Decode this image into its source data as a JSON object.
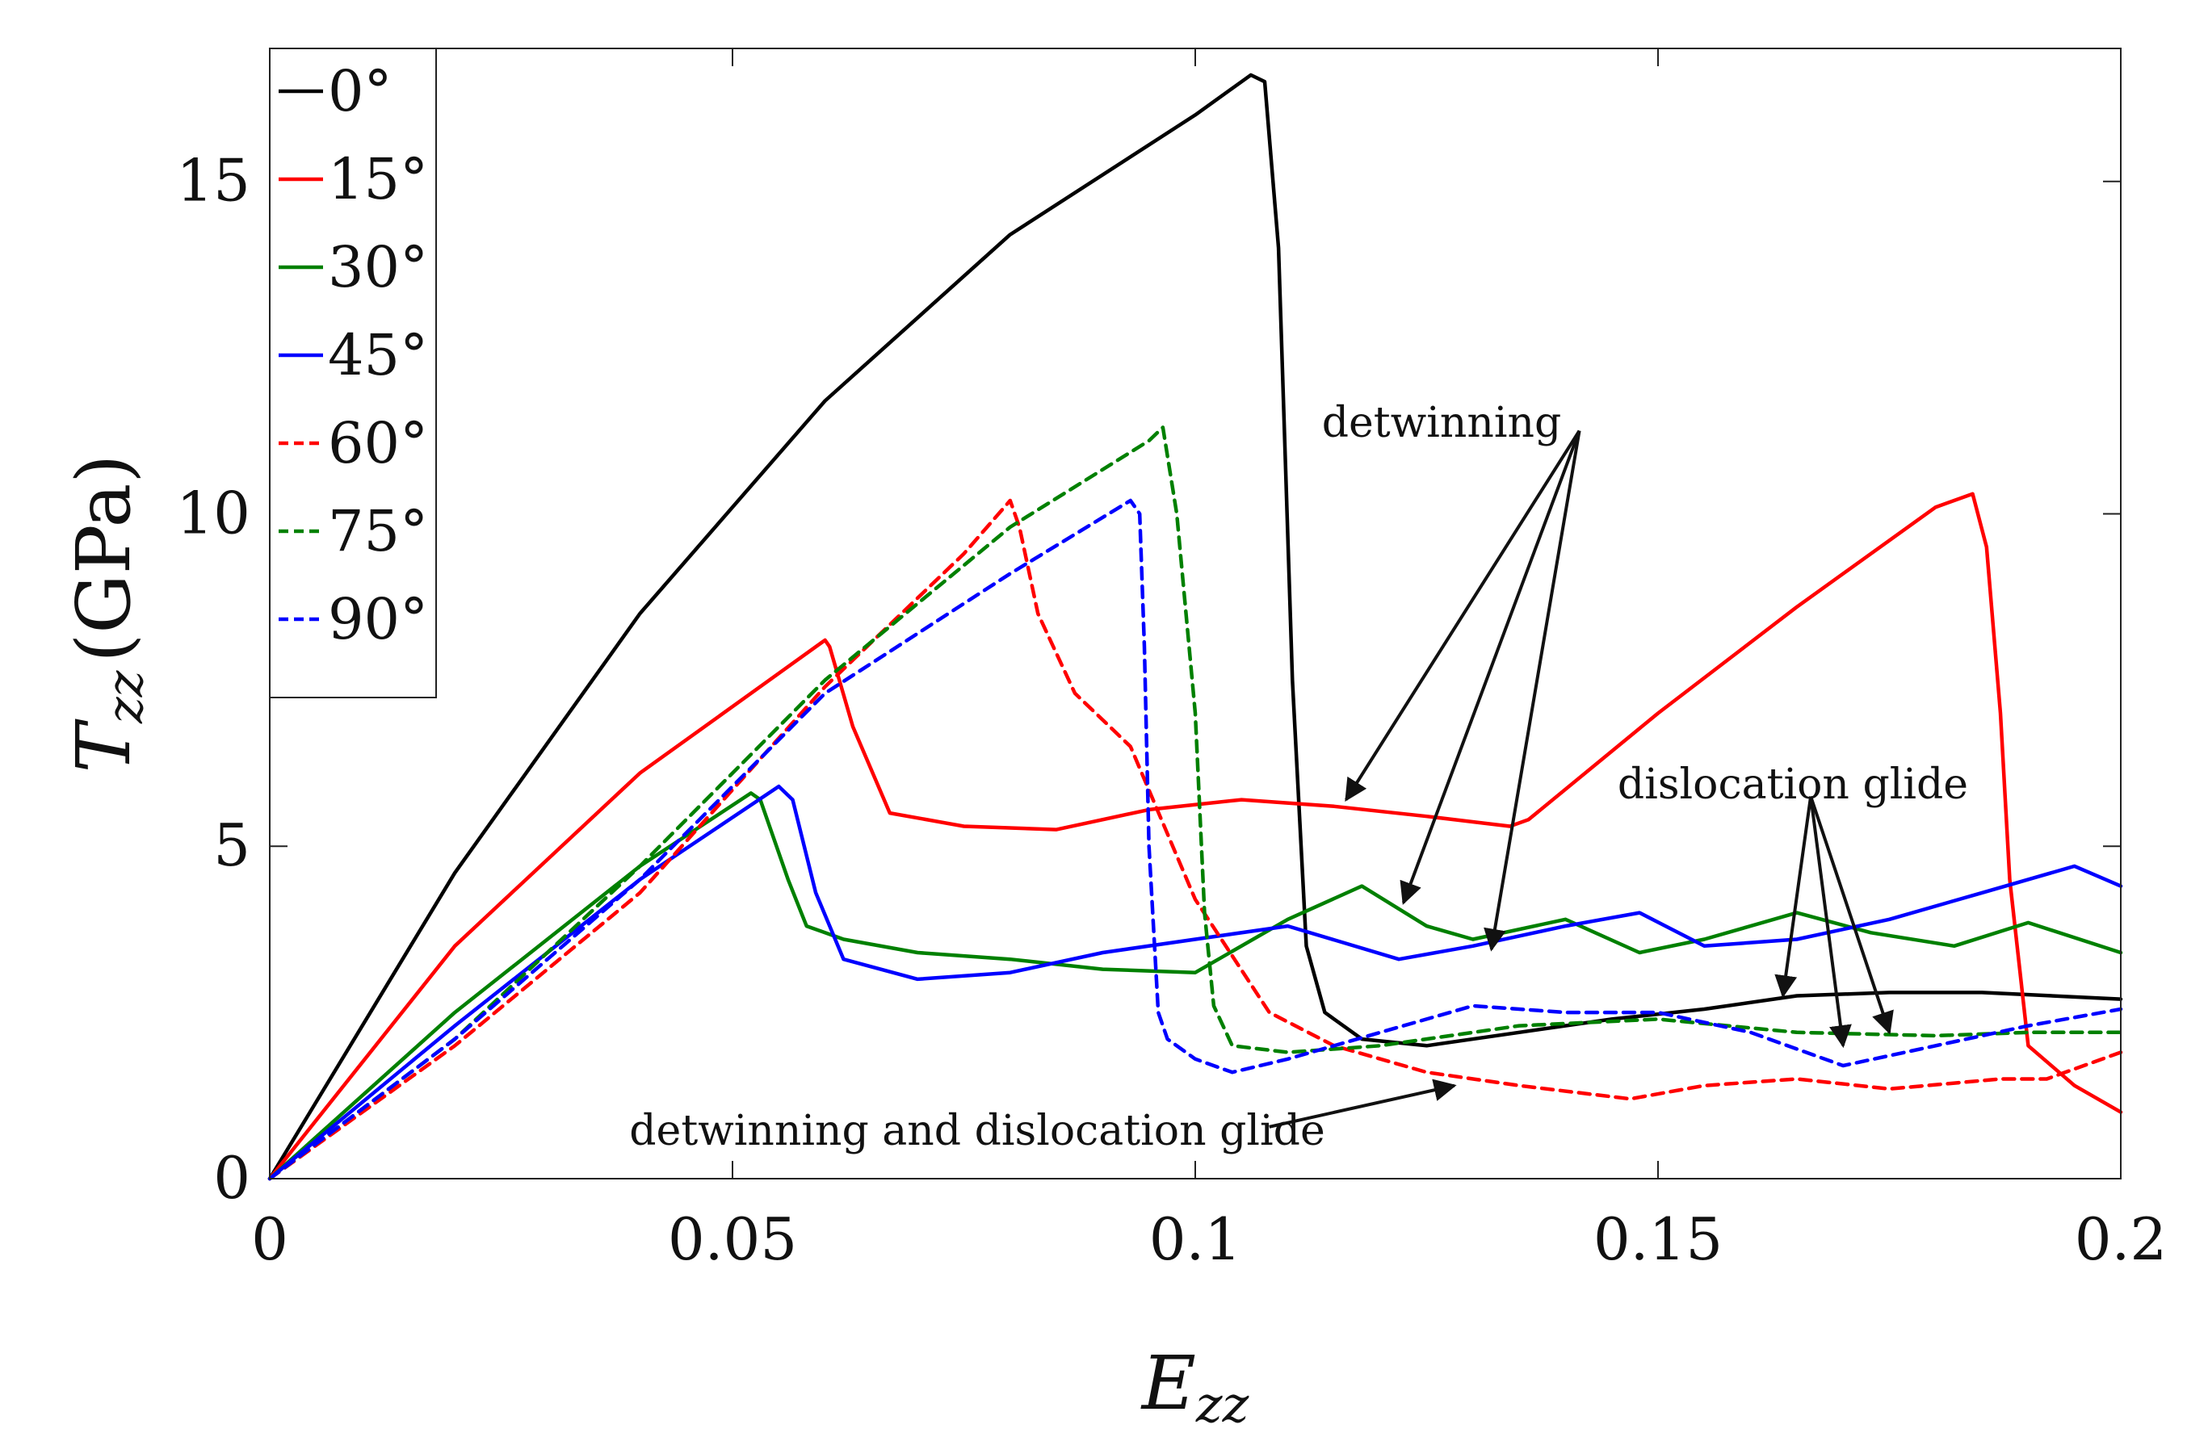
{
  "chart_data": {
    "type": "line",
    "xlabel_main": "E",
    "xlabel_sub": "zz",
    "ylabel_main": "T",
    "ylabel_sub": "zz",
    "ylabel_unit": "(GPa)",
    "xlim": [
      0,
      0.2
    ],
    "ylim": [
      0,
      17
    ],
    "xticks": [
      {
        "v": 0,
        "label": "0"
      },
      {
        "v": 0.05,
        "label": "0.05"
      },
      {
        "v": 0.1,
        "label": "0.1"
      },
      {
        "v": 0.15,
        "label": "0.15"
      },
      {
        "v": 0.2,
        "label": "0.2"
      }
    ],
    "yticks": [
      {
        "v": 0,
        "label": "0"
      },
      {
        "v": 5,
        "label": "5"
      },
      {
        "v": 10,
        "label": "10"
      },
      {
        "v": 15,
        "label": "15"
      }
    ],
    "legend_position": "top-left",
    "series": [
      {
        "name": "0°",
        "color": "#000000",
        "dash": "solid",
        "x": [
          0,
          0.02,
          0.04,
          0.06,
          0.08,
          0.1,
          0.106,
          0.1075,
          0.109,
          0.1105,
          0.112,
          0.114,
          0.118,
          0.125,
          0.135,
          0.145,
          0.155,
          0.165,
          0.175,
          0.185,
          0.2
        ],
        "y": [
          0,
          4.6,
          8.5,
          11.7,
          14.2,
          16.0,
          16.6,
          16.5,
          14.0,
          7.5,
          3.5,
          2.5,
          2.1,
          2.0,
          2.2,
          2.4,
          2.55,
          2.75,
          2.8,
          2.8,
          2.7
        ]
      },
      {
        "name": "15°",
        "color": "#ff0000",
        "dash": "solid",
        "x": [
          0,
          0.02,
          0.04,
          0.055,
          0.06,
          0.0605,
          0.063,
          0.067,
          0.075,
          0.085,
          0.095,
          0.105,
          0.115,
          0.125,
          0.134,
          0.136,
          0.15,
          0.165,
          0.18,
          0.184,
          0.1855,
          0.187,
          0.188,
          0.19,
          0.195,
          0.2
        ],
        "y": [
          0,
          3.5,
          6.1,
          7.6,
          8.1,
          8.0,
          6.8,
          5.5,
          5.3,
          5.25,
          5.55,
          5.7,
          5.6,
          5.45,
          5.3,
          5.4,
          7.0,
          8.6,
          10.1,
          10.3,
          9.5,
          7.0,
          4.5,
          2.0,
          1.4,
          1.0
        ]
      },
      {
        "name": "30°",
        "color": "#008000",
        "dash": "solid",
        "x": [
          0,
          0.02,
          0.04,
          0.052,
          0.053,
          0.056,
          0.058,
          0.062,
          0.07,
          0.08,
          0.09,
          0.1,
          0.11,
          0.118,
          0.125,
          0.13,
          0.14,
          0.148,
          0.155,
          0.165,
          0.173,
          0.182,
          0.19,
          0.2
        ],
        "y": [
          0,
          2.5,
          4.7,
          5.8,
          5.7,
          4.5,
          3.8,
          3.6,
          3.4,
          3.3,
          3.15,
          3.1,
          3.9,
          4.4,
          3.8,
          3.6,
          3.9,
          3.4,
          3.6,
          4.0,
          3.7,
          3.5,
          3.85,
          3.4
        ]
      },
      {
        "name": "45°",
        "color": "#0000ff",
        "dash": "solid",
        "x": [
          0,
          0.02,
          0.04,
          0.055,
          0.0565,
          0.059,
          0.062,
          0.07,
          0.08,
          0.09,
          0.1,
          0.11,
          0.122,
          0.13,
          0.14,
          0.148,
          0.155,
          0.165,
          0.175,
          0.185,
          0.195,
          0.2
        ],
        "y": [
          0,
          2.3,
          4.5,
          5.9,
          5.7,
          4.3,
          3.3,
          3.0,
          3.1,
          3.4,
          3.6,
          3.8,
          3.3,
          3.5,
          3.8,
          4.0,
          3.5,
          3.6,
          3.9,
          4.3,
          4.7,
          4.4
        ]
      },
      {
        "name": "60°",
        "color": "#ff0000",
        "dash": "dashed",
        "x": [
          0,
          0.02,
          0.04,
          0.06,
          0.075,
          0.08,
          0.081,
          0.083,
          0.087,
          0.093,
          0.1,
          0.108,
          0.115,
          0.125,
          0.135,
          0.147,
          0.155,
          0.165,
          0.175,
          0.187,
          0.192,
          0.2
        ],
        "y": [
          0,
          2.0,
          4.3,
          7.4,
          9.4,
          10.2,
          9.8,
          8.5,
          7.3,
          6.5,
          4.2,
          2.5,
          2.0,
          1.6,
          1.4,
          1.2,
          1.4,
          1.5,
          1.35,
          1.5,
          1.5,
          1.9
        ]
      },
      {
        "name": "75°",
        "color": "#008000",
        "dash": "dashed",
        "x": [
          0,
          0.02,
          0.04,
          0.06,
          0.08,
          0.095,
          0.0965,
          0.098,
          0.1,
          0.101,
          0.102,
          0.104,
          0.11,
          0.12,
          0.135,
          0.15,
          0.165,
          0.18,
          0.19,
          0.2
        ],
        "y": [
          0,
          2.1,
          4.7,
          7.5,
          9.8,
          11.1,
          11.3,
          10.0,
          7.0,
          4.0,
          2.6,
          2.0,
          1.9,
          2.0,
          2.3,
          2.4,
          2.2,
          2.15,
          2.2,
          2.2
        ]
      },
      {
        "name": "90°",
        "color": "#0000ff",
        "dash": "dashed",
        "x": [
          0,
          0.02,
          0.04,
          0.06,
          0.08,
          0.093,
          0.094,
          0.0945,
          0.095,
          0.096,
          0.097,
          0.1,
          0.104,
          0.11,
          0.12,
          0.13,
          0.14,
          0.15,
          0.16,
          0.17,
          0.18,
          0.19,
          0.2
        ],
        "y": [
          0,
          2.1,
          4.5,
          7.3,
          9.1,
          10.2,
          10.0,
          8.0,
          5.0,
          2.5,
          2.1,
          1.8,
          1.6,
          1.8,
          2.2,
          2.6,
          2.5,
          2.5,
          2.2,
          1.7,
          2.0,
          2.3,
          2.55
        ]
      }
    ],
    "annotations": [
      {
        "text": "detwinning",
        "anchor": [
          0.1415,
          11.25
        ],
        "targets": [
          [
            0.1163,
            5.7
          ],
          [
            0.1225,
            4.15
          ],
          [
            0.132,
            3.45
          ]
        ]
      },
      {
        "text": "dislocation glide",
        "anchor": [
          0.1665,
          5.75
        ],
        "targets": [
          [
            0.1635,
            2.75
          ],
          [
            0.17,
            2.0
          ],
          [
            0.175,
            2.2
          ]
        ]
      },
      {
        "text": "detwinning and dislocation glide",
        "anchor": [
          0.108,
          0.78
        ],
        "targets": [
          [
            0.128,
            1.4
          ]
        ]
      }
    ]
  }
}
